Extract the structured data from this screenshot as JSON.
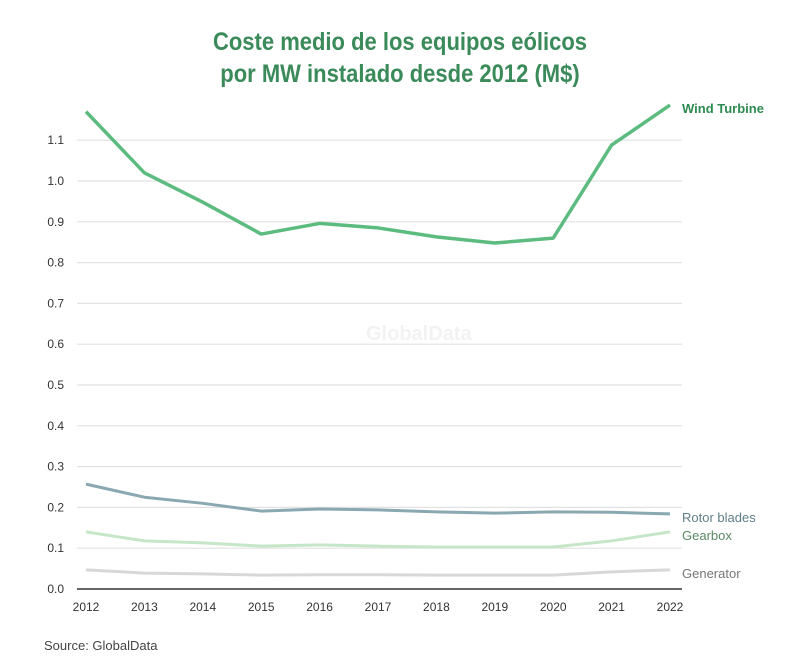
{
  "chart_data": {
    "type": "line",
    "title": "Coste medio de los equipos eólicos por MW instalado desde 2012 (M$)",
    "title_lines": [
      "Coste medio de los equipos eólicos",
      "por MW instalado desde 2012 (M$)"
    ],
    "xlabel": "",
    "ylabel": "",
    "x": [
      2012,
      2013,
      2014,
      2015,
      2016,
      2017,
      2018,
      2019,
      2020,
      2021,
      2022
    ],
    "ylim": [
      0,
      1.15
    ],
    "yticks": [
      "0.0",
      "0.1",
      "0.2",
      "0.3",
      "0.4",
      "0.5",
      "0.6",
      "0.7",
      "0.8",
      "0.9",
      "1.0",
      "1.1"
    ],
    "grid": true,
    "legend_placement": "inline-right",
    "series": [
      {
        "name": "Wind Turbine",
        "color": "#5cbb7f",
        "label_color": "#2e8a50",
        "values": [
          1.17,
          1.02,
          0.948,
          0.87,
          0.896,
          0.885,
          0.863,
          0.848,
          0.86,
          1.088,
          1.186
        ]
      },
      {
        "name": "Rotor blades",
        "color": "#8aa8b2",
        "label_color": "#5f7f88",
        "values": [
          0.257,
          0.225,
          0.21,
          0.191,
          0.196,
          0.194,
          0.189,
          0.186,
          0.189,
          0.188,
          0.184
        ]
      },
      {
        "name": "Gearbox",
        "color": "#c6e6c8",
        "label_color": "#5a8a66",
        "values": [
          0.14,
          0.118,
          0.113,
          0.105,
          0.108,
          0.105,
          0.103,
          0.103,
          0.103,
          0.118,
          0.14
        ]
      },
      {
        "name": "Generator",
        "color": "#d8d8d8",
        "label_color": "#777777",
        "values": [
          0.047,
          0.039,
          0.037,
          0.034,
          0.035,
          0.035,
          0.034,
          0.034,
          0.034,
          0.042,
          0.047
        ]
      }
    ]
  },
  "source": "Source: GlobalData",
  "watermark": "GlobalData"
}
